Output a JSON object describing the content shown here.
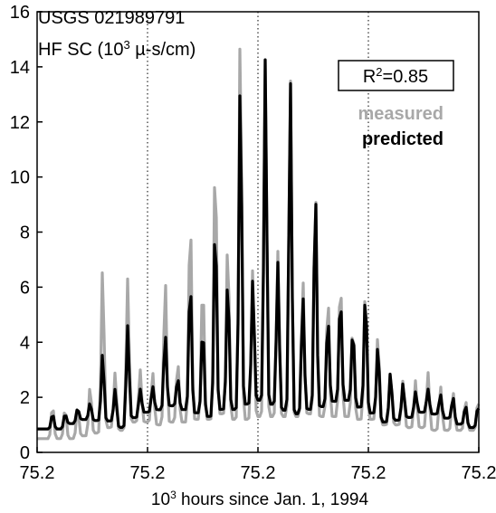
{
  "chart_data": {
    "type": "line",
    "annotation_line1": "USGS 021989791",
    "annotation_line2_prefix": "HF SC (10",
    "annotation_line2_sup": "3",
    "annotation_line2_suffix": " µ-s/cm)",
    "xlabel_prefix": "10",
    "xlabel_sup": "3",
    "xlabel_suffix": " hours since Jan. 1, 1994",
    "ylim": [
      0,
      16
    ],
    "y_ticks": [
      "0",
      "2",
      "4",
      "6",
      "8",
      "10",
      "12",
      "14",
      "16"
    ],
    "x_tick_labels": [
      "75.2",
      "75.2",
      "75.2",
      "75.2",
      "75.2"
    ],
    "vertical_dotted_gridlines": [
      0.25,
      0.5,
      0.75
    ],
    "legend_position": "top-right",
    "r2_prefix": "R",
    "r2_sup": "2",
    "r2_suffix": "=0.85",
    "legend_entries": [
      "measured",
      "predicted"
    ],
    "colors": {
      "measured": "#a8a8a8",
      "predicted": "#000000"
    },
    "series": [
      {
        "name": "measured",
        "peaks": [
          1.7,
          1.6,
          1.6,
          2.4,
          6.7,
          2.9,
          6.3,
          3.0,
          2.9,
          6.3,
          3.3,
          8.7,
          6.3,
          10.9,
          7.7,
          15.3,
          6.7,
          14.3,
          7.3,
          13.6,
          6.3,
          9.6,
          5.7,
          6.4,
          4.7,
          6.0,
          4.3,
          2.9,
          2.6,
          2.6,
          2.9,
          2.4,
          2.2,
          1.9
        ],
        "troughs": [
          0.5,
          0.5,
          0.6,
          0.7,
          0.9,
          0.8,
          1.1,
          1.1,
          1.0,
          1.1,
          1.1,
          1.2,
          1.2,
          1.4,
          1.2,
          1.2,
          1.3,
          1.3,
          1.3,
          1.3,
          1.4,
          1.3,
          1.3,
          1.3,
          1.2,
          1.2,
          1.0,
          1.0,
          0.9,
          0.9,
          0.8,
          0.8,
          0.8,
          0.8
        ]
      },
      {
        "name": "predicted",
        "peaks": [
          1.4,
          1.4,
          1.6,
          1.8,
          3.6,
          2.3,
          4.6,
          2.3,
          2.4,
          4.3,
          2.7,
          6.3,
          4.6,
          8.5,
          6.3,
          13.5,
          6.3,
          14.3,
          6.9,
          13.5,
          5.7,
          9.5,
          4.9,
          5.7,
          4.5,
          5.8,
          3.9,
          2.9,
          2.5,
          2.2,
          2.3,
          2.1,
          2.0,
          1.7
        ]
      }
    ]
  }
}
